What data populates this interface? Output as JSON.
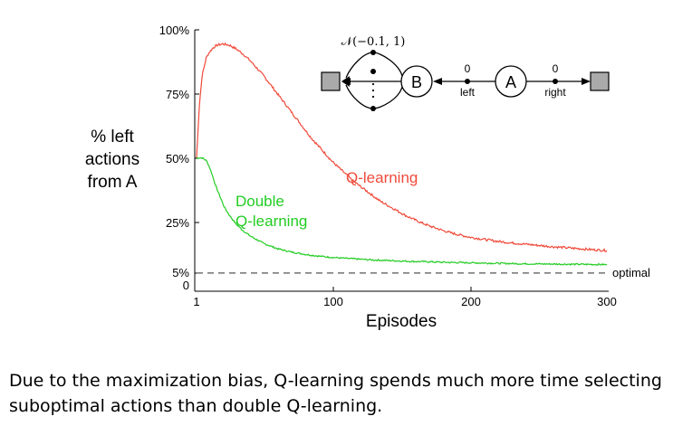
{
  "chart_data": {
    "type": "line",
    "title": "",
    "xlabel": "Episodes",
    "ylabel": [
      "% left",
      "actions",
      "from A"
    ],
    "xlim": [
      1,
      300
    ],
    "ylim": [
      0,
      100
    ],
    "x_ticks": [
      "1",
      "100",
      "200",
      "300"
    ],
    "y_ticks": [
      "0",
      "5%",
      "25%",
      "50%",
      "75%",
      "100%"
    ],
    "grid": false,
    "series": [
      {
        "name": "Q-learning",
        "color": "#f04a3a",
        "x": [
          1,
          3,
          5,
          8,
          10,
          13,
          16,
          20,
          25,
          30,
          35,
          40,
          45,
          50,
          55,
          60,
          65,
          70,
          75,
          80,
          85,
          90,
          95,
          100,
          105,
          110,
          115,
          120,
          125,
          130,
          135,
          140,
          145,
          150,
          155,
          160,
          165,
          170,
          175,
          180,
          185,
          190,
          195,
          200,
          210,
          220,
          230,
          240,
          250,
          260,
          270,
          280,
          290,
          300
        ],
        "y": [
          50,
          70,
          82,
          89,
          91,
          93,
          94,
          94.5,
          94,
          92.5,
          90.5,
          88,
          85,
          82,
          78.5,
          75,
          71.5,
          68,
          64.5,
          61,
          57.5,
          54.5,
          51.5,
          48.5,
          46,
          43.5,
          41,
          39,
          37,
          35,
          33,
          31.5,
          30,
          28.5,
          27,
          25.8,
          24.6,
          23.5,
          22.6,
          21.7,
          20.9,
          20.2,
          19.6,
          19,
          18.2,
          17.4,
          16.8,
          16.3,
          15.8,
          15.3,
          14.9,
          14.5,
          14.1,
          13.8
        ]
      },
      {
        "name": "Double Q-learning",
        "color": "#22cc22",
        "x": [
          1,
          5,
          8,
          10,
          12,
          15,
          18,
          21,
          25,
          30,
          35,
          40,
          45,
          50,
          55,
          60,
          70,
          80,
          90,
          100,
          110,
          120,
          130,
          140,
          150,
          160,
          170,
          180,
          200,
          220,
          240,
          260,
          280,
          300
        ],
        "y": [
          50,
          50,
          49,
          47,
          44,
          39,
          35,
          31,
          27.5,
          24,
          21.5,
          19.5,
          18,
          16.5,
          15.5,
          14.5,
          13.2,
          12.3,
          11.6,
          11.1,
          10.7,
          10.4,
          10.1,
          9.9,
          9.7,
          9.5,
          9.4,
          9.2,
          9,
          8.8,
          8.6,
          8.5,
          8.4,
          8.3
        ]
      }
    ],
    "reference_line": {
      "y": 5,
      "label": "optimal",
      "style": "dashed"
    },
    "series_labels": {
      "q": "Q-learning",
      "dq_line1": "Double",
      "dq_line2": "Q-learning"
    },
    "inset_diagram": {
      "node_b": "B",
      "node_a": "A",
      "reward_dist": "𝒩(−0.1, 1)",
      "left_reward": "0",
      "right_reward": "0",
      "left_label": "left",
      "right_label": "right"
    }
  },
  "caption": "Due to the maximization bias, Q-learning spends much more time selecting suboptimal actions than double Q-learning."
}
